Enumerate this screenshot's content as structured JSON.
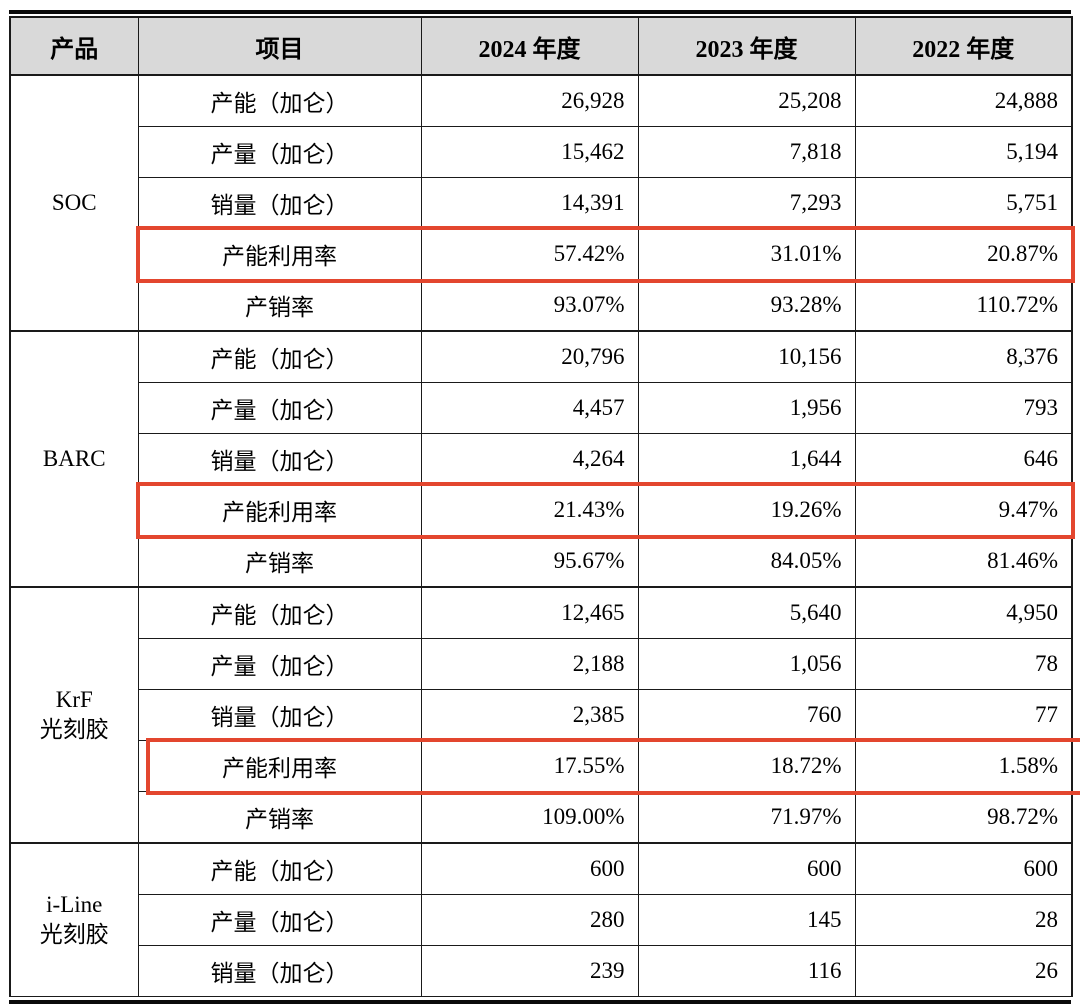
{
  "table": {
    "headers": [
      "产品",
      "项目",
      "2024 年度",
      "2023 年度",
      "2022 年度"
    ],
    "highlight_color": "#e3462e",
    "products": [
      {
        "name": "SOC",
        "rows": [
          {
            "item": "产能（加仑）",
            "values": [
              "26,928",
              "25,208",
              "24,888"
            ],
            "highlight": false
          },
          {
            "item": "产量（加仑）",
            "values": [
              "15,462",
              "7,818",
              "5,194"
            ],
            "highlight": false
          },
          {
            "item": "销量（加仑）",
            "values": [
              "14,391",
              "7,293",
              "5,751"
            ],
            "highlight": false
          },
          {
            "item": "产能利用率",
            "values": [
              "57.42%",
              "31.01%",
              "20.87%"
            ],
            "highlight": true,
            "highlight_style": "box"
          },
          {
            "item": "产销率",
            "values": [
              "93.07%",
              "93.28%",
              "110.72%"
            ],
            "highlight": false
          }
        ]
      },
      {
        "name": "BARC",
        "rows": [
          {
            "item": "产能（加仑）",
            "values": [
              "20,796",
              "10,156",
              "8,376"
            ],
            "highlight": false
          },
          {
            "item": "产量（加仑）",
            "values": [
              "4,457",
              "1,956",
              "793"
            ],
            "highlight": false
          },
          {
            "item": "销量（加仑）",
            "values": [
              "4,264",
              "1,644",
              "646"
            ],
            "highlight": false
          },
          {
            "item": "产能利用率",
            "values": [
              "21.43%",
              "19.26%",
              "9.47%"
            ],
            "highlight": true,
            "highlight_style": "box"
          },
          {
            "item": "产销率",
            "values": [
              "95.67%",
              "84.05%",
              "81.46%"
            ],
            "highlight": false
          }
        ]
      },
      {
        "name": "KrF\n光刻胶",
        "rows": [
          {
            "item": "产能（加仑）",
            "values": [
              "12,465",
              "5,640",
              "4,950"
            ],
            "highlight": false
          },
          {
            "item": "产量（加仑）",
            "values": [
              "2,188",
              "1,056",
              "78"
            ],
            "highlight": false
          },
          {
            "item": "销量（加仑）",
            "values": [
              "2,385",
              "760",
              "77"
            ],
            "highlight": false
          },
          {
            "item": "产能利用率",
            "values": [
              "17.55%",
              "18.72%",
              "1.58%"
            ],
            "highlight": true,
            "highlight_style": "open-right"
          },
          {
            "item": "产销率",
            "values": [
              "109.00%",
              "71.97%",
              "98.72%"
            ],
            "highlight": false
          }
        ]
      },
      {
        "name": "i-Line\n光刻胶",
        "rows": [
          {
            "item": "产能（加仑）",
            "values": [
              "600",
              "600",
              "600"
            ],
            "highlight": false
          },
          {
            "item": "产量（加仑）",
            "values": [
              "280",
              "145",
              "28"
            ],
            "highlight": false
          },
          {
            "item": "销量（加仑）",
            "values": [
              "239",
              "116",
              "26"
            ],
            "highlight": false
          }
        ]
      }
    ]
  }
}
